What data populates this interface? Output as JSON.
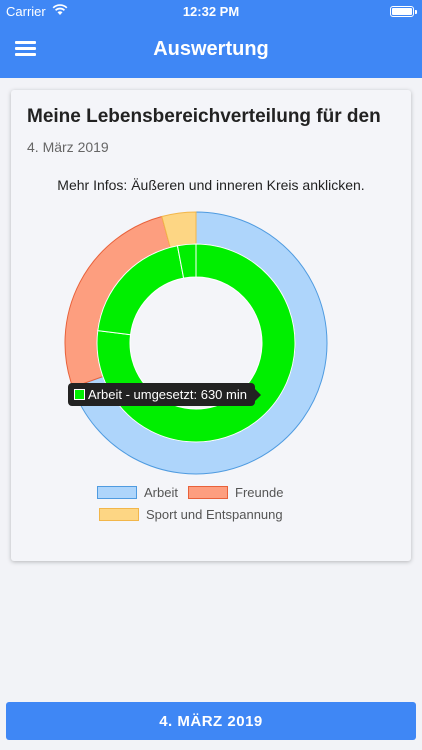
{
  "status_bar": {
    "carrier": "Carrier",
    "time": "12:32 PM"
  },
  "nav": {
    "title": "Auswertung",
    "menu_icon": "hamburger-menu-icon"
  },
  "card": {
    "heading": "Meine Lebensbereichverteilung für den",
    "date": "4. März 2019",
    "hint": "Mehr Infos: Äußeren und inneren Kreis anklicken."
  },
  "tooltip": {
    "text": "Arbeit - umgesetzt: 630 min",
    "color": "#00ef00"
  },
  "legend": [
    {
      "label": "Arbeit",
      "fill": "#aed5fb",
      "stroke": "#4f9be0"
    },
    {
      "label": "Freunde",
      "fill": "#fd9e7f",
      "stroke": "#e8613a"
    },
    {
      "label": "Sport und Entspannung",
      "fill": "#fdd684",
      "stroke": "#f2b64a"
    }
  ],
  "chart_data": {
    "type": "pie",
    "outer_ring": [
      {
        "category": "Arbeit",
        "fraction": 0.695,
        "color": "#aed5fb"
      },
      {
        "category": "Freunde",
        "fraction": 0.263,
        "color": "#fd9e7f"
      },
      {
        "category": "Sport und Entspannung",
        "fraction": 0.042,
        "color": "#fdd684"
      }
    ],
    "inner_ring": [
      {
        "category": "Arbeit",
        "fraction": 0.77,
        "color": "#00ef00",
        "value": 630,
        "unit": "min"
      },
      {
        "category": "Freunde",
        "fraction": 0.2,
        "color": "#00ef00"
      },
      {
        "category": "Sport und Entspannung",
        "fraction": 0.03,
        "color": "#00ef00"
      }
    ]
  },
  "bottom_button": {
    "label": "4. MÄRZ 2019"
  }
}
